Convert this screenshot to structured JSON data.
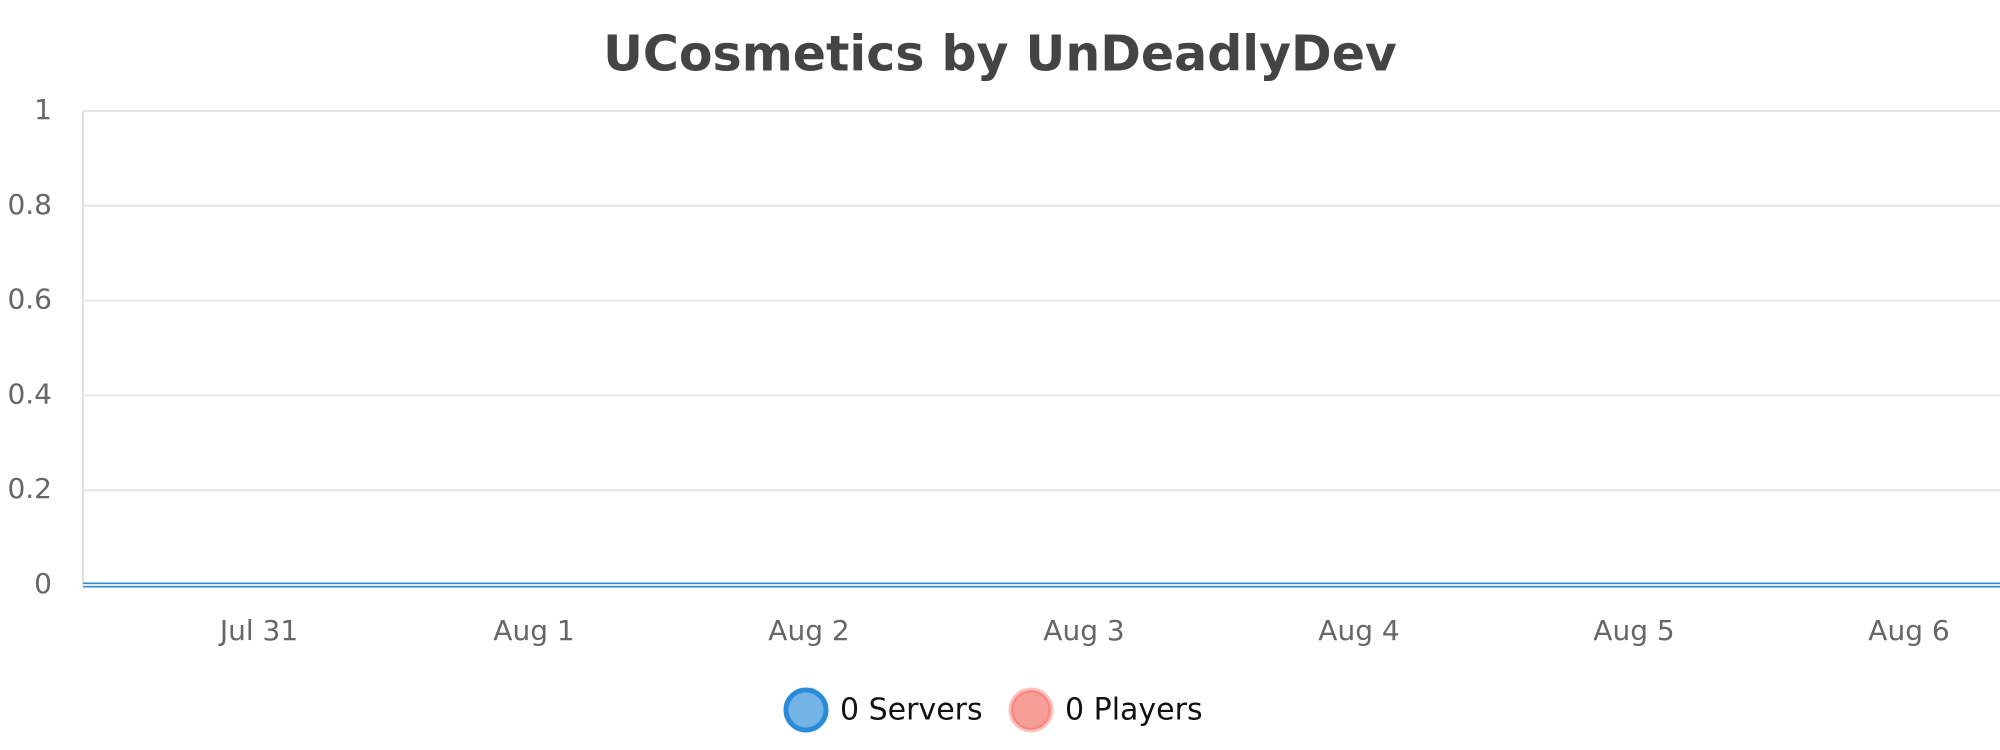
{
  "chart_data": {
    "type": "line",
    "title": "UCosmetics by UnDeadlyDev",
    "categories": [
      null,
      "Jul 31",
      "Aug 1",
      "Aug 2",
      "Aug 3",
      "Aug 4",
      "Aug 5",
      "Aug 6",
      null
    ],
    "series": [
      {
        "name": "0 Servers",
        "color": "#2a8bd9",
        "values": [
          0,
          0,
          0,
          0,
          0,
          0,
          0,
          0,
          0
        ]
      },
      {
        "name": "0 Players",
        "color": "#f46a61",
        "values": [
          0,
          0,
          0,
          0,
          0,
          0,
          0,
          0,
          0
        ]
      }
    ],
    "ylim": [
      0,
      1
    ],
    "yticks": [
      0,
      0.2,
      0.4,
      0.6,
      0.8,
      1
    ],
    "grid": true
  }
}
